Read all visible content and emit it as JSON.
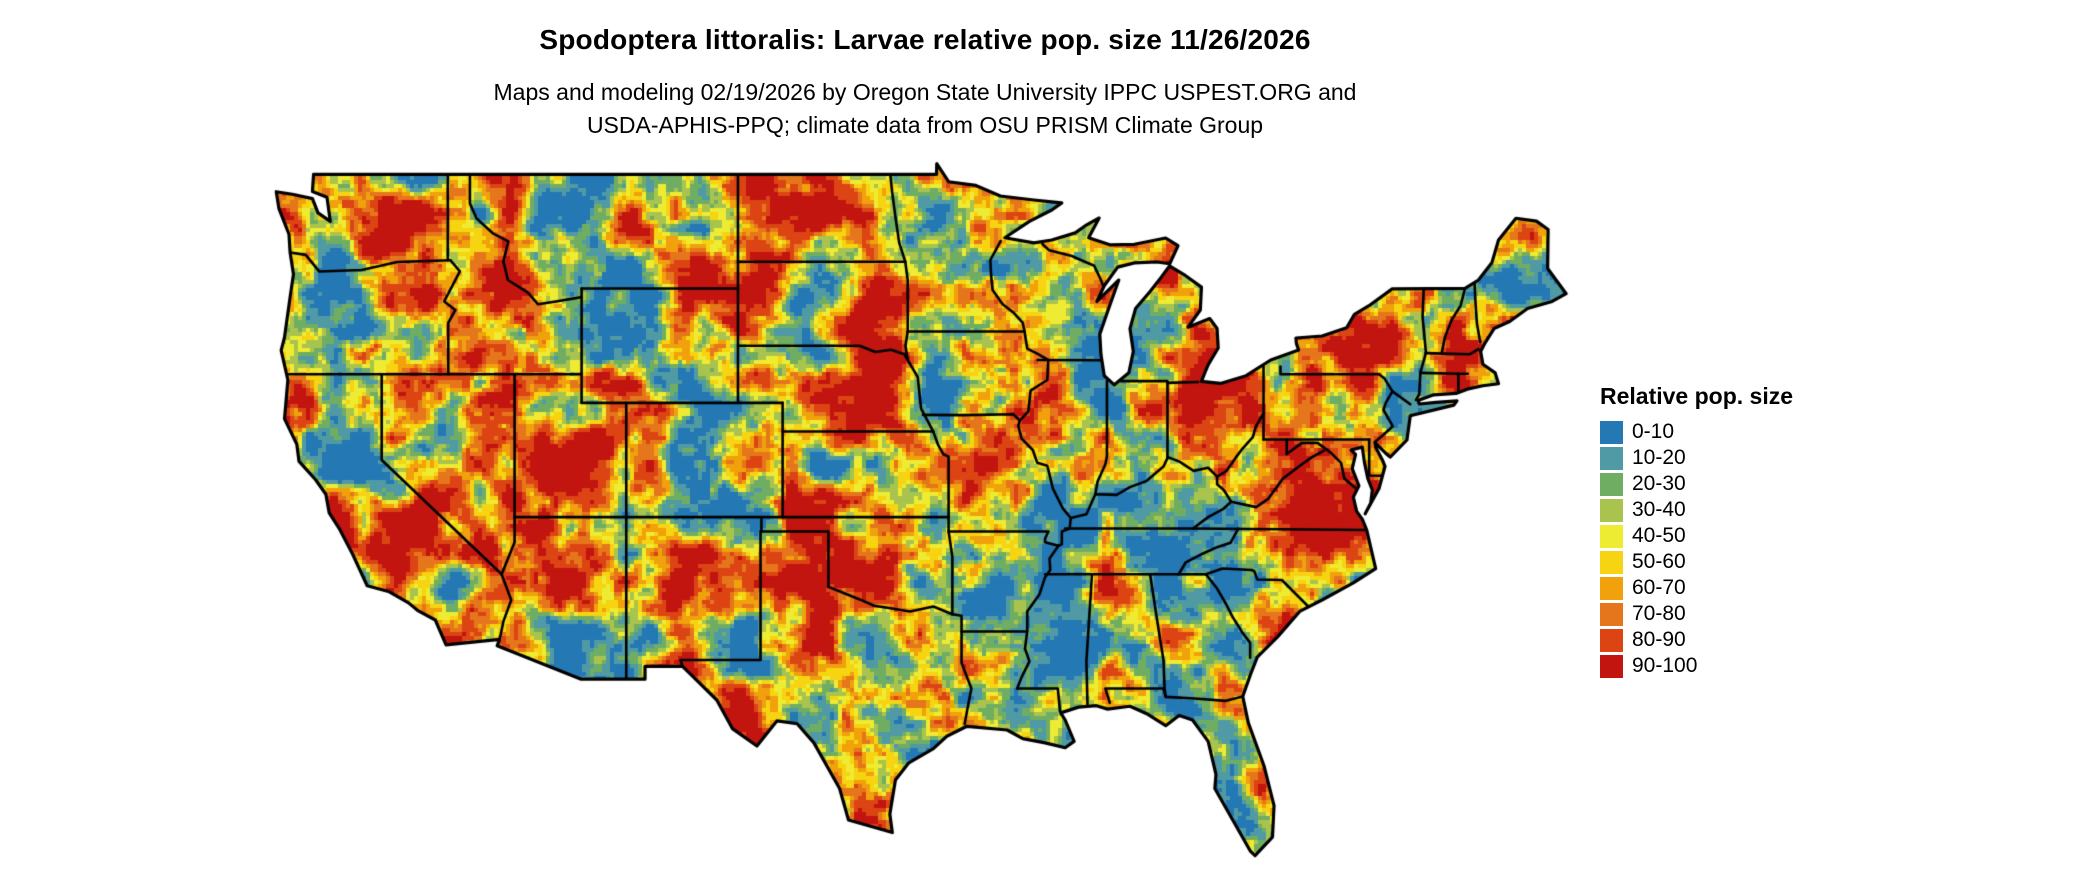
{
  "header": {
    "title": "Spodoptera littoralis: Larvae relative pop. size 11/26/2026",
    "subtitle_line1": "Maps and modeling 02/19/2026 by Oregon State University IPPC USPEST.ORG and",
    "subtitle_line2": "USDA-APHIS-PPQ; climate data from OSU PRISM Climate Group"
  },
  "legend": {
    "title": "Relative pop. size",
    "items": [
      {
        "label": "0-10",
        "color": "#2478b3"
      },
      {
        "label": "10-20",
        "color": "#4f9aa4"
      },
      {
        "label": "20-30",
        "color": "#6fae62"
      },
      {
        "label": "30-40",
        "color": "#a9c44e"
      },
      {
        "label": "40-50",
        "color": "#eeeb33"
      },
      {
        "label": "50-60",
        "color": "#f6d411"
      },
      {
        "label": "60-70",
        "color": "#f0a10c"
      },
      {
        "label": "70-80",
        "color": "#e5761b"
      },
      {
        "label": "80-90",
        "color": "#dc4414"
      },
      {
        "label": "90-100",
        "color": "#c3150f"
      }
    ]
  },
  "map": {
    "region": "Contiguous United States",
    "border_color": "#000000",
    "water_background": "#ffffff"
  },
  "chart_data": {
    "type": "heatmap",
    "title": "Spodoptera littoralis: Larvae relative pop. size 11/26/2026",
    "region": "Contiguous United States",
    "variable": "Larvae relative population size",
    "date_shown": "11/26/2026",
    "model_run_date": "02/19/2026",
    "scale_min": 0,
    "scale_max": 100,
    "bin_size": 10,
    "legend_title": "Relative pop. size",
    "legend_position": "right",
    "bins": [
      "0-10",
      "10-20",
      "20-30",
      "30-40",
      "40-50",
      "50-60",
      "60-70",
      "70-80",
      "80-90",
      "90-100"
    ],
    "bin_colors": [
      "#2478b3",
      "#4f9aa4",
      "#6fae62",
      "#a9c44e",
      "#eeeb33",
      "#f6d411",
      "#f0a10c",
      "#e5761b",
      "#dc4414",
      "#c3150f"
    ]
  }
}
